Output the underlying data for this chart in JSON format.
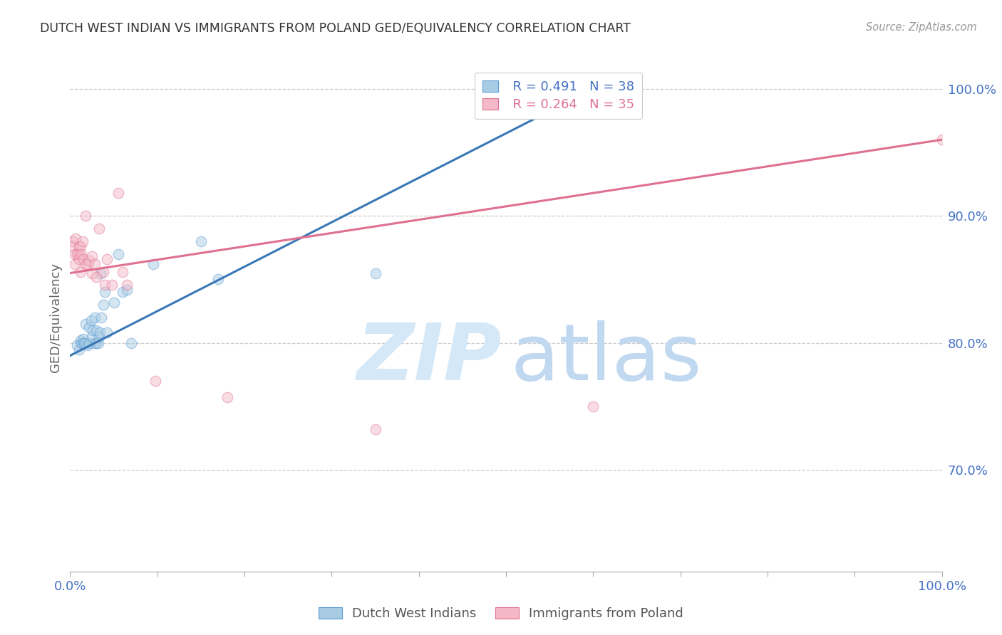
{
  "title": "DUTCH WEST INDIAN VS IMMIGRANTS FROM POLAND GED/EQUIVALENCY CORRELATION CHART",
  "source": "Source: ZipAtlas.com",
  "ylabel": "GED/Equivalency",
  "yticks_labels": [
    "100.0%",
    "90.0%",
    "80.0%",
    "70.0%"
  ],
  "yticks_vals": [
    1.0,
    0.9,
    0.8,
    0.7
  ],
  "blue_R": "R = 0.491",
  "blue_N": "N = 38",
  "pink_R": "R = 0.264",
  "pink_N": "N = 35",
  "legend_label_blue": "Dutch West Indians",
  "legend_label_pink": "Immigrants from Poland",
  "blue_scatter_x": [
    0.008,
    0.01,
    0.012,
    0.013,
    0.014,
    0.015,
    0.016,
    0.018,
    0.018,
    0.02,
    0.022,
    0.022,
    0.024,
    0.025,
    0.026,
    0.028,
    0.028,
    0.03,
    0.03,
    0.032,
    0.033,
    0.034,
    0.035,
    0.036,
    0.038,
    0.04,
    0.042,
    0.05,
    0.055,
    0.06,
    0.065,
    0.07,
    0.095,
    0.15,
    0.17,
    0.35,
    0.58,
    0.6
  ],
  "blue_scatter_y": [
    0.798,
    0.795,
    0.802,
    0.8,
    0.8,
    0.803,
    0.8,
    0.8,
    0.815,
    0.798,
    0.8,
    0.812,
    0.818,
    0.805,
    0.81,
    0.8,
    0.82,
    0.8,
    0.81,
    0.8,
    0.805,
    0.808,
    0.855,
    0.82,
    0.83,
    0.84,
    0.808,
    0.832,
    0.87,
    0.84,
    0.842,
    0.8,
    0.862,
    0.88,
    0.85,
    0.855,
    0.992,
    1.0
  ],
  "pink_scatter_x": [
    0.003,
    0.004,
    0.005,
    0.005,
    0.006,
    0.008,
    0.01,
    0.01,
    0.01,
    0.012,
    0.012,
    0.013,
    0.014,
    0.015,
    0.018,
    0.018,
    0.02,
    0.022,
    0.025,
    0.025,
    0.028,
    0.03,
    0.033,
    0.038,
    0.04,
    0.042,
    0.048,
    0.055,
    0.06,
    0.065,
    0.098,
    0.18,
    0.35,
    0.6,
    1.0
  ],
  "pink_scatter_y": [
    0.88,
    0.876,
    0.87,
    0.862,
    0.882,
    0.87,
    0.876,
    0.87,
    0.866,
    0.876,
    0.856,
    0.87,
    0.88,
    0.866,
    0.9,
    0.862,
    0.862,
    0.865,
    0.868,
    0.855,
    0.862,
    0.852,
    0.89,
    0.856,
    0.846,
    0.866,
    0.846,
    0.918,
    0.856,
    0.846,
    0.77,
    0.757,
    0.732,
    0.75,
    0.96
  ],
  "blue_trendline_x": [
    0.0,
    0.6
  ],
  "blue_trendline_y": [
    0.79,
    1.0
  ],
  "pink_trendline_x": [
    0.0,
    1.0
  ],
  "pink_trendline_y": [
    0.855,
    0.96
  ],
  "scatter_size": 110,
  "scatter_alpha": 0.5,
  "blue_color": "#a8cce4",
  "pink_color": "#f4b8c8",
  "blue_edge_color": "#5b9bd5",
  "pink_edge_color": "#e07090",
  "blue_line_color": "#3a78b5",
  "pink_line_color": "#e07090",
  "watermark_zip_color": "#dce9f5",
  "watermark_atlas_color": "#c8dff5",
  "background_color": "#ffffff",
  "grid_color": "#cccccc",
  "title_color": "#333333",
  "axis_color": "#4472c4",
  "right_tick_color": "#4472c4",
  "xlim": [
    0.0,
    1.0
  ],
  "ylim": [
    0.62,
    1.02
  ]
}
